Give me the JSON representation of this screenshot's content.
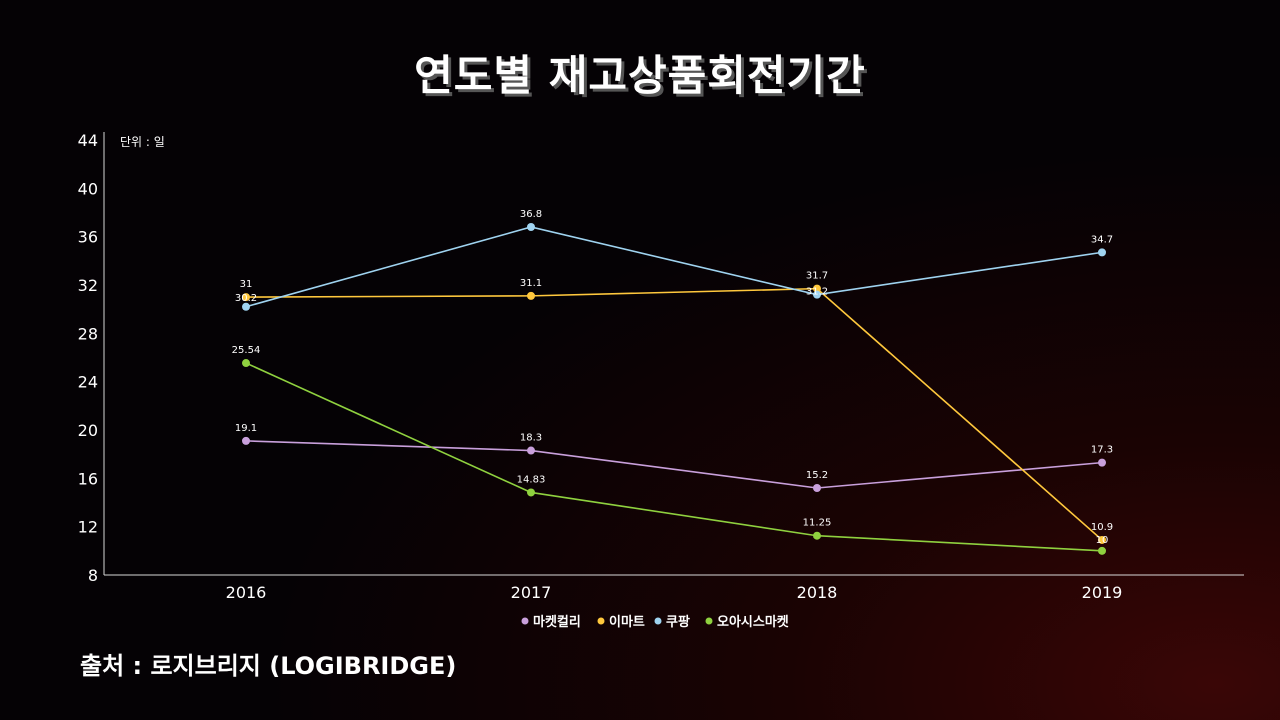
{
  "title": "연도별 재고상품회전기간",
  "source": "출처 : 로지브리지 (LOGIBRIDGE)",
  "chart_data": {
    "type": "line",
    "unit_label": "단위 : 일",
    "x": [
      "2016",
      "2017",
      "2018",
      "2019"
    ],
    "ylim": [
      8,
      44
    ],
    "yticks": [
      8,
      12,
      16,
      20,
      24,
      28,
      32,
      36,
      40,
      44
    ],
    "grid": false,
    "legend_position": "bottom",
    "series": [
      {
        "name": "마켓컬리",
        "color": "#c9a0dc",
        "values": [
          19.1,
          18.3,
          15.2,
          17.3
        ],
        "labels": [
          "19.1",
          "18.3",
          "15.2",
          "17.3"
        ]
      },
      {
        "name": "이마트",
        "color": "#ffc83d",
        "values": [
          31,
          31.1,
          31.7,
          10.9
        ],
        "labels": [
          "31",
          "31.1",
          "31.7",
          "10.9"
        ]
      },
      {
        "name": "쿠팡",
        "color": "#9fd3f0",
        "values": [
          30.2,
          36.8,
          31.2,
          34.7
        ],
        "labels": [
          "30.2",
          "36.8",
          "31.2",
          "34.7"
        ]
      },
      {
        "name": "오아시스마켓",
        "color": "#8fd13f",
        "values": [
          25.54,
          14.83,
          11.25,
          10
        ],
        "labels": [
          "25.54",
          "14.83",
          "11.25",
          "10"
        ]
      }
    ]
  }
}
